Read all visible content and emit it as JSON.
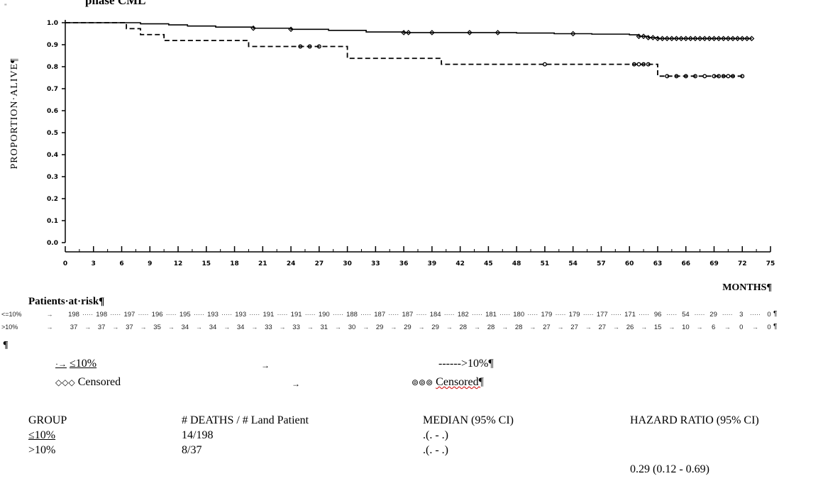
{
  "title": "phase CML",
  "corner_mark": "\"",
  "chart_data": {
    "type": "line",
    "title": "",
    "xlabel": "MONTHS¶",
    "ylabel": "PROPORTION·ALIVE¶",
    "xlim": [
      0,
      75
    ],
    "ylim": [
      0,
      1.0
    ],
    "xticks": [
      0,
      3,
      6,
      9,
      12,
      15,
      18,
      21,
      24,
      27,
      30,
      33,
      36,
      39,
      42,
      45,
      48,
      51,
      54,
      57,
      60,
      63,
      66,
      69,
      72,
      75
    ],
    "ytick_labels": [
      "0.0",
      "0.1",
      "0.2",
      "0.3",
      "0.4",
      "0.5",
      "0.6",
      "0.7",
      "0.8",
      "0.9",
      "1.0"
    ],
    "series": [
      {
        "name": "≤10%",
        "style": "solid",
        "color": "#000000",
        "x": [
          0,
          6,
          8,
          11,
          13,
          16,
          20,
          24,
          28,
          32,
          36,
          40,
          44,
          48,
          52,
          56,
          60,
          61,
          62,
          63,
          73
        ],
        "y": [
          1.0,
          1.0,
          0.995,
          0.99,
          0.985,
          0.98,
          0.975,
          0.97,
          0.965,
          0.958,
          0.955,
          0.955,
          0.955,
          0.953,
          0.95,
          0.948,
          0.945,
          0.938,
          0.932,
          0.928,
          0.928
        ],
        "censored_x": [
          20,
          24,
          36,
          36.5,
          39,
          43,
          46,
          54,
          61,
          61.5,
          62,
          62.5,
          63,
          63.5,
          64,
          64.5,
          65,
          65.5,
          66,
          66.5,
          67,
          67.5,
          68,
          68.5,
          69,
          69.5,
          70,
          70.5,
          71,
          71.5,
          72,
          72.5,
          73
        ]
      },
      {
        "name": ">10%",
        "style": "dashed",
        "color": "#000000",
        "x": [
          0,
          6,
          6.5,
          8,
          10.5,
          19.5,
          27,
          30,
          34,
          40,
          44,
          62,
          63,
          72
        ],
        "y": [
          1.0,
          1.0,
          0.973,
          0.946,
          0.919,
          0.892,
          0.892,
          0.838,
          0.838,
          0.811,
          0.811,
          0.811,
          0.757,
          0.757
        ],
        "censored_x": [
          25,
          26,
          27,
          51,
          60.5,
          61,
          61.5,
          62,
          64,
          65,
          66,
          67,
          68,
          69,
          69.5,
          70,
          70.5,
          71,
          72
        ]
      }
    ],
    "grid": false,
    "legend": "below"
  },
  "risk_table": {
    "title": "Patients·at·risk¶",
    "rows": [
      {
        "label": "<=10%",
        "values": [
          "198",
          "198",
          "197",
          "196",
          "195",
          "193",
          "193",
          "191",
          "191",
          "190",
          "188",
          "187",
          "187",
          "184",
          "182",
          "181",
          "180",
          "179",
          "179",
          "177",
          "171",
          "96",
          "54",
          "29",
          "3",
          "0"
        ],
        "end": "¶"
      },
      {
        "label": ">10%",
        "values": [
          "37",
          "37",
          "37",
          "35",
          "34",
          "34",
          "34",
          "33",
          "33",
          "31",
          "30",
          "29",
          "29",
          "29",
          "28",
          "28",
          "28",
          "27",
          "27",
          "27",
          "26",
          "15",
          "10",
          "6",
          "0",
          "0"
        ],
        "end": "¶"
      }
    ],
    "pilcrow": "¶"
  },
  "legend": {
    "solid_prefix": "·→",
    "solid_label": "≤10%",
    "tab_arrow": "→",
    "dashed_label": "------>10%¶",
    "censored1_glyph": "◇◇◇",
    "censored1_label": "Censored",
    "censored2_glyph": "⊚⊚⊚",
    "censored2_label": "Censored¶"
  },
  "stats_table": {
    "headers": [
      "GROUP",
      "# DEATHS / # Land Patient",
      "MEDIAN (95% CI)",
      "HAZARD RATIO (95% CI)"
    ],
    "rows": [
      [
        "≤10%",
        "14/198",
        ".(. - .)",
        ""
      ],
      [
        ">10%",
        "8/37",
        ".(. - .)",
        ""
      ]
    ],
    "hazard_ratio": "0.29 (0.12 - 0.69)"
  }
}
